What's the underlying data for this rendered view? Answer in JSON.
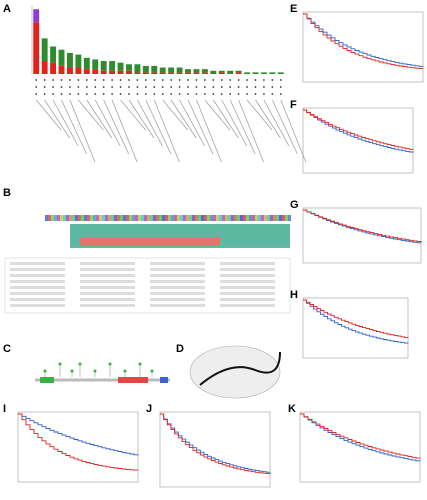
{
  "panels": [
    {
      "label": "A"
    },
    {
      "label": "B"
    },
    {
      "label": "C"
    },
    {
      "label": "D"
    },
    {
      "label": "E"
    },
    {
      "label": "F"
    },
    {
      "label": "G"
    },
    {
      "label": "H"
    },
    {
      "label": "I"
    },
    {
      "label": "J"
    },
    {
      "label": "K"
    }
  ],
  "chart_data": {
    "type": "bar",
    "ylim": [
      0,
      42
    ],
    "series": [
      {
        "color": "#e0231c",
        "values": [
          32,
          8,
          7,
          5,
          4,
          4,
          3,
          3,
          2,
          2,
          2,
          2,
          1,
          1,
          1,
          1,
          1,
          1,
          1,
          1,
          1,
          0,
          1,
          0,
          1,
          0,
          0,
          0,
          0,
          0
        ]
      },
      {
        "color": "#2e8b2e",
        "values": [
          0,
          14,
          10,
          10,
          9,
          8,
          7,
          6,
          6,
          6,
          5,
          4,
          5,
          4,
          4,
          3,
          3,
          3,
          2,
          2,
          2,
          2,
          1,
          2,
          1,
          1,
          1,
          1,
          1,
          1
        ]
      },
      {
        "color": "#8a3fd0",
        "values": [
          8,
          0,
          0,
          0,
          0,
          0,
          0,
          0,
          0,
          0,
          0,
          0,
          0,
          0,
          0,
          0,
          0,
          0,
          0,
          0,
          0,
          0,
          0,
          0,
          0,
          0,
          0,
          0,
          0,
          0
        ]
      }
    ]
  }
}
